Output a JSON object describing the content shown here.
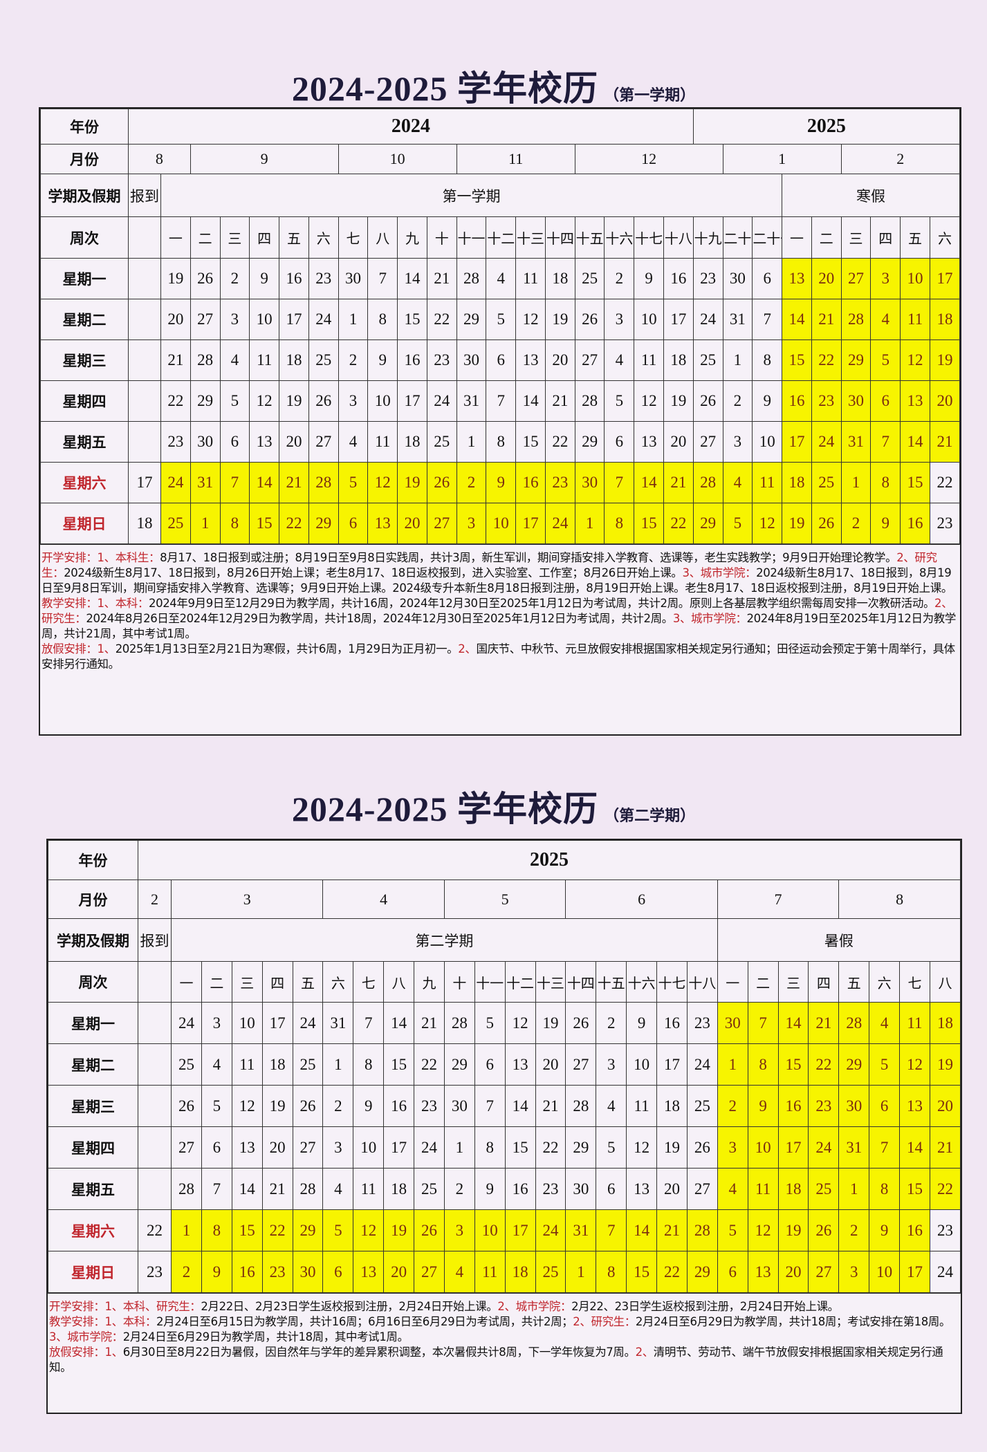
{
  "colors": {
    "highlight": "#f7f400",
    "highlight_text": "#7a2c10",
    "weekend_label": "#c0262d",
    "note_label": "#c0262d"
  },
  "labels": {
    "year": "年份",
    "month": "月份",
    "period": "学期及假期",
    "week": "周次"
  },
  "semesters": [
    {
      "title": "2024-2025 学年校历",
      "subtitle": "（第一学期）",
      "years": [
        {
          "label": "2024",
          "span": 19
        },
        {
          "label": "2025",
          "span": 9
        }
      ],
      "months": [
        {
          "label": "8",
          "span": 2
        },
        {
          "label": "9",
          "span": 5
        },
        {
          "label": "10",
          "span": 4
        },
        {
          "label": "11",
          "span": 4
        },
        {
          "label": "12",
          "span": 5
        },
        {
          "label": "1",
          "span": 4
        },
        {
          "label": "2",
          "span": 4
        }
      ],
      "periods": [
        {
          "label": "报到",
          "span": 1
        },
        {
          "label": "第一学期",
          "span": 21
        },
        {
          "label": "寒假",
          "span": 6
        }
      ],
      "semester_weeks": [
        "一",
        "二",
        "三",
        "四",
        "五",
        "六",
        "七",
        "八",
        "九",
        "十",
        "十一",
        "十二",
        "十三",
        "十四",
        "十五",
        "十六",
        "十七",
        "十八",
        "十九",
        "二十",
        "二十一"
      ],
      "vacation_weeks": [
        "一",
        "二",
        "三",
        "四",
        "五",
        "六"
      ],
      "highlighted_vacation_weekend_weeks": 5,
      "rows": [
        {
          "day": "星期一",
          "weekend": false,
          "register": "",
          "semester": [
            "19",
            "26",
            "2",
            "9",
            "16",
            "23",
            "30",
            "7",
            "14",
            "21",
            "28",
            "4",
            "11",
            "18",
            "25",
            "2",
            "9",
            "16",
            "23",
            "30",
            "6"
          ],
          "vacation": [
            "13",
            "20",
            "27",
            "3",
            "10",
            "17"
          ]
        },
        {
          "day": "星期二",
          "weekend": false,
          "register": "",
          "semester": [
            "20",
            "27",
            "3",
            "10",
            "17",
            "24",
            "1",
            "8",
            "15",
            "22",
            "29",
            "5",
            "12",
            "19",
            "26",
            "3",
            "10",
            "17",
            "24",
            "31",
            "7"
          ],
          "vacation": [
            "14",
            "21",
            "28",
            "4",
            "11",
            "18"
          ]
        },
        {
          "day": "星期三",
          "weekend": false,
          "register": "",
          "semester": [
            "21",
            "28",
            "4",
            "11",
            "18",
            "25",
            "2",
            "9",
            "16",
            "23",
            "30",
            "6",
            "13",
            "20",
            "27",
            "4",
            "11",
            "18",
            "25",
            "1",
            "8"
          ],
          "vacation": [
            "15",
            "22",
            "29",
            "5",
            "12",
            "19"
          ]
        },
        {
          "day": "星期四",
          "weekend": false,
          "register": "",
          "semester": [
            "22",
            "29",
            "5",
            "12",
            "19",
            "26",
            "3",
            "10",
            "17",
            "24",
            "31",
            "7",
            "14",
            "21",
            "28",
            "5",
            "12",
            "19",
            "26",
            "2",
            "9"
          ],
          "vacation": [
            "16",
            "23",
            "30",
            "6",
            "13",
            "20"
          ]
        },
        {
          "day": "星期五",
          "weekend": false,
          "register": "",
          "semester": [
            "23",
            "30",
            "6",
            "13",
            "20",
            "27",
            "4",
            "11",
            "18",
            "25",
            "1",
            "8",
            "15",
            "22",
            "29",
            "6",
            "13",
            "20",
            "27",
            "3",
            "10"
          ],
          "vacation": [
            "17",
            "24",
            "31",
            "7",
            "14",
            "21"
          ]
        },
        {
          "day": "星期六",
          "weekend": true,
          "register": "17",
          "semester": [
            "24",
            "31",
            "7",
            "14",
            "21",
            "28",
            "5",
            "12",
            "19",
            "26",
            "2",
            "9",
            "16",
            "23",
            "30",
            "7",
            "14",
            "21",
            "28",
            "4",
            "11"
          ],
          "vacation": [
            "18",
            "25",
            "1",
            "8",
            "15",
            "22"
          ]
        },
        {
          "day": "星期日",
          "weekend": true,
          "register": "18",
          "semester": [
            "25",
            "1",
            "8",
            "15",
            "22",
            "29",
            "6",
            "13",
            "20",
            "27",
            "3",
            "10",
            "17",
            "24",
            "1",
            "8",
            "15",
            "22",
            "29",
            "5",
            "12"
          ],
          "vacation": [
            "19",
            "26",
            "2",
            "9",
            "16",
            "23"
          ]
        }
      ],
      "notes": [
        [
          {
            "t": "开学安排：1、本科生：",
            "red": true
          },
          {
            "t": "8月17、18日报到或注册；8月19日至9月8日实践周，共计3周，新生军训，期间穿插安排入学教育、选课等，老生实践教学；9月9日开始理论教学。",
            "red": false
          },
          {
            "t": "2、研究生：",
            "red": true
          },
          {
            "t": "2024级新生8月17、18日报到，8月26日开始上课；老生8月17、18日返校报到，进入实验室、工作室；8月26日开始上课。",
            "red": false
          },
          {
            "t": "3、城市学院：",
            "red": true
          },
          {
            "t": "2024级新生8月17、18日报到，8月19日至9月8日军训，期间穿插安排入学教育、选课等；9月9日开始上课。2024级专升本新生8月18日报到注册，8月19日开始上课。老生8月17、18日返校报到注册，8月19日开始上课。",
            "red": false
          }
        ],
        [
          {
            "t": "教学安排：1、本科：",
            "red": true
          },
          {
            "t": "2024年9月9日至12月29日为教学周，共计16周，2024年12月30日至2025年1月12日为考试周，共计2周。原则上各基层教学组织需每周安排一次教研活动。",
            "red": false
          },
          {
            "t": "2、研究生：",
            "red": true
          },
          {
            "t": "2024年8月26日至2024年12月29日为教学周，共计18周，2024年12月30日至2025年1月12日为考试周，共计2周。",
            "red": false
          },
          {
            "t": "3、城市学院：",
            "red": true
          },
          {
            "t": "2024年8月19日至2025年1月12日为教学周，共计21周，其中考试1周。",
            "red": false
          }
        ],
        [
          {
            "t": "放假安排：1、",
            "red": true
          },
          {
            "t": "2025年1月13日至2月21日为寒假，共计6周，1月29日为正月初一。",
            "red": false
          },
          {
            "t": "2、",
            "red": true
          },
          {
            "t": "国庆节、中秋节、元旦放假安排根据国家相关规定另行通知；田径运动会预定于第十周举行，具体安排另行通知。",
            "red": false
          }
        ]
      ]
    },
    {
      "title": "2024-2025 学年校历",
      "subtitle": "（第二学期）",
      "years": [
        {
          "label": "2025",
          "span": 27
        }
      ],
      "months": [
        {
          "label": "2",
          "span": 1
        },
        {
          "label": "3",
          "span": 5
        },
        {
          "label": "4",
          "span": 4
        },
        {
          "label": "5",
          "span": 4
        },
        {
          "label": "6",
          "span": 5
        },
        {
          "label": "7",
          "span": 4
        },
        {
          "label": "8",
          "span": 4
        }
      ],
      "periods": [
        {
          "label": "报到",
          "span": 1
        },
        {
          "label": "第二学期",
          "span": 18
        },
        {
          "label": "暑假",
          "span": 8
        }
      ],
      "semester_weeks": [
        "一",
        "二",
        "三",
        "四",
        "五",
        "六",
        "七",
        "八",
        "九",
        "十",
        "十一",
        "十二",
        "十三",
        "十四",
        "十五",
        "十六",
        "十七",
        "十八"
      ],
      "vacation_weeks": [
        "一",
        "二",
        "三",
        "四",
        "五",
        "六",
        "七",
        "八"
      ],
      "highlighted_vacation_weekend_weeks": 7,
      "rows": [
        {
          "day": "星期一",
          "weekend": false,
          "register": "",
          "semester": [
            "24",
            "3",
            "10",
            "17",
            "24",
            "31",
            "7",
            "14",
            "21",
            "28",
            "5",
            "12",
            "19",
            "26",
            "2",
            "9",
            "16",
            "23"
          ],
          "vacation": [
            "30",
            "7",
            "14",
            "21",
            "28",
            "4",
            "11",
            "18"
          ]
        },
        {
          "day": "星期二",
          "weekend": false,
          "register": "",
          "semester": [
            "25",
            "4",
            "11",
            "18",
            "25",
            "1",
            "8",
            "15",
            "22",
            "29",
            "6",
            "13",
            "20",
            "27",
            "3",
            "10",
            "17",
            "24"
          ],
          "vacation": [
            "1",
            "8",
            "15",
            "22",
            "29",
            "5",
            "12",
            "19"
          ]
        },
        {
          "day": "星期三",
          "weekend": false,
          "register": "",
          "semester": [
            "26",
            "5",
            "12",
            "19",
            "26",
            "2",
            "9",
            "16",
            "23",
            "30",
            "7",
            "14",
            "21",
            "28",
            "4",
            "11",
            "18",
            "25"
          ],
          "vacation": [
            "2",
            "9",
            "16",
            "23",
            "30",
            "6",
            "13",
            "20"
          ]
        },
        {
          "day": "星期四",
          "weekend": false,
          "register": "",
          "semester": [
            "27",
            "6",
            "13",
            "20",
            "27",
            "3",
            "10",
            "17",
            "24",
            "1",
            "8",
            "15",
            "22",
            "29",
            "5",
            "12",
            "19",
            "26"
          ],
          "vacation": [
            "3",
            "10",
            "17",
            "24",
            "31",
            "7",
            "14",
            "21"
          ]
        },
        {
          "day": "星期五",
          "weekend": false,
          "register": "",
          "semester": [
            "28",
            "7",
            "14",
            "21",
            "28",
            "4",
            "11",
            "18",
            "25",
            "2",
            "9",
            "16",
            "23",
            "30",
            "6",
            "13",
            "20",
            "27"
          ],
          "vacation": [
            "4",
            "11",
            "18",
            "25",
            "1",
            "8",
            "15",
            "22"
          ]
        },
        {
          "day": "星期六",
          "weekend": true,
          "register": "22",
          "semester": [
            "1",
            "8",
            "15",
            "22",
            "29",
            "5",
            "12",
            "19",
            "26",
            "3",
            "10",
            "17",
            "24",
            "31",
            "7",
            "14",
            "21",
            "28"
          ],
          "vacation": [
            "5",
            "12",
            "19",
            "26",
            "2",
            "9",
            "16",
            "23"
          ]
        },
        {
          "day": "星期日",
          "weekend": true,
          "register": "23",
          "semester": [
            "2",
            "9",
            "16",
            "23",
            "30",
            "6",
            "13",
            "20",
            "27",
            "4",
            "11",
            "18",
            "25",
            "1",
            "8",
            "15",
            "22",
            "29"
          ],
          "vacation": [
            "6",
            "13",
            "20",
            "27",
            "3",
            "10",
            "17",
            "24"
          ]
        }
      ],
      "notes": [
        [
          {
            "t": "开学安排：1、本科、研究生：",
            "red": true
          },
          {
            "t": "2月22日、2月23日学生返校报到注册，2月24日开始上课。",
            "red": false
          },
          {
            "t": "2、城市学院：",
            "red": true
          },
          {
            "t": "2月22、23日学生返校报到注册，2月24日开始上课。",
            "red": false
          }
        ],
        [
          {
            "t": "教学安排：1、本科：",
            "red": true
          },
          {
            "t": "2月24日至6月15日为教学周，共计16周；6月16日至6月29日为考试周，共计2周；",
            "red": false
          },
          {
            "t": "2、研究生：",
            "red": true
          },
          {
            "t": "2月24日至6月29日为教学周，共计18周；考试安排在第18周。",
            "red": false
          },
          {
            "t": "3、城市学院：",
            "red": true
          },
          {
            "t": "2月24日至6月29日为教学周，共计18周，其中考试1周。",
            "red": false
          }
        ],
        [
          {
            "t": "放假安排：1、",
            "red": true
          },
          {
            "t": "6月30日至8月22日为暑假，因自然年与学年的差异累积调整，本次暑假共计8周，下一学年恢复为7周。",
            "red": false
          },
          {
            "t": "2、",
            "red": true
          },
          {
            "t": "清明节、劳动节、端午节放假安排根据国家相关规定另行通知。",
            "red": false
          }
        ]
      ]
    }
  ]
}
